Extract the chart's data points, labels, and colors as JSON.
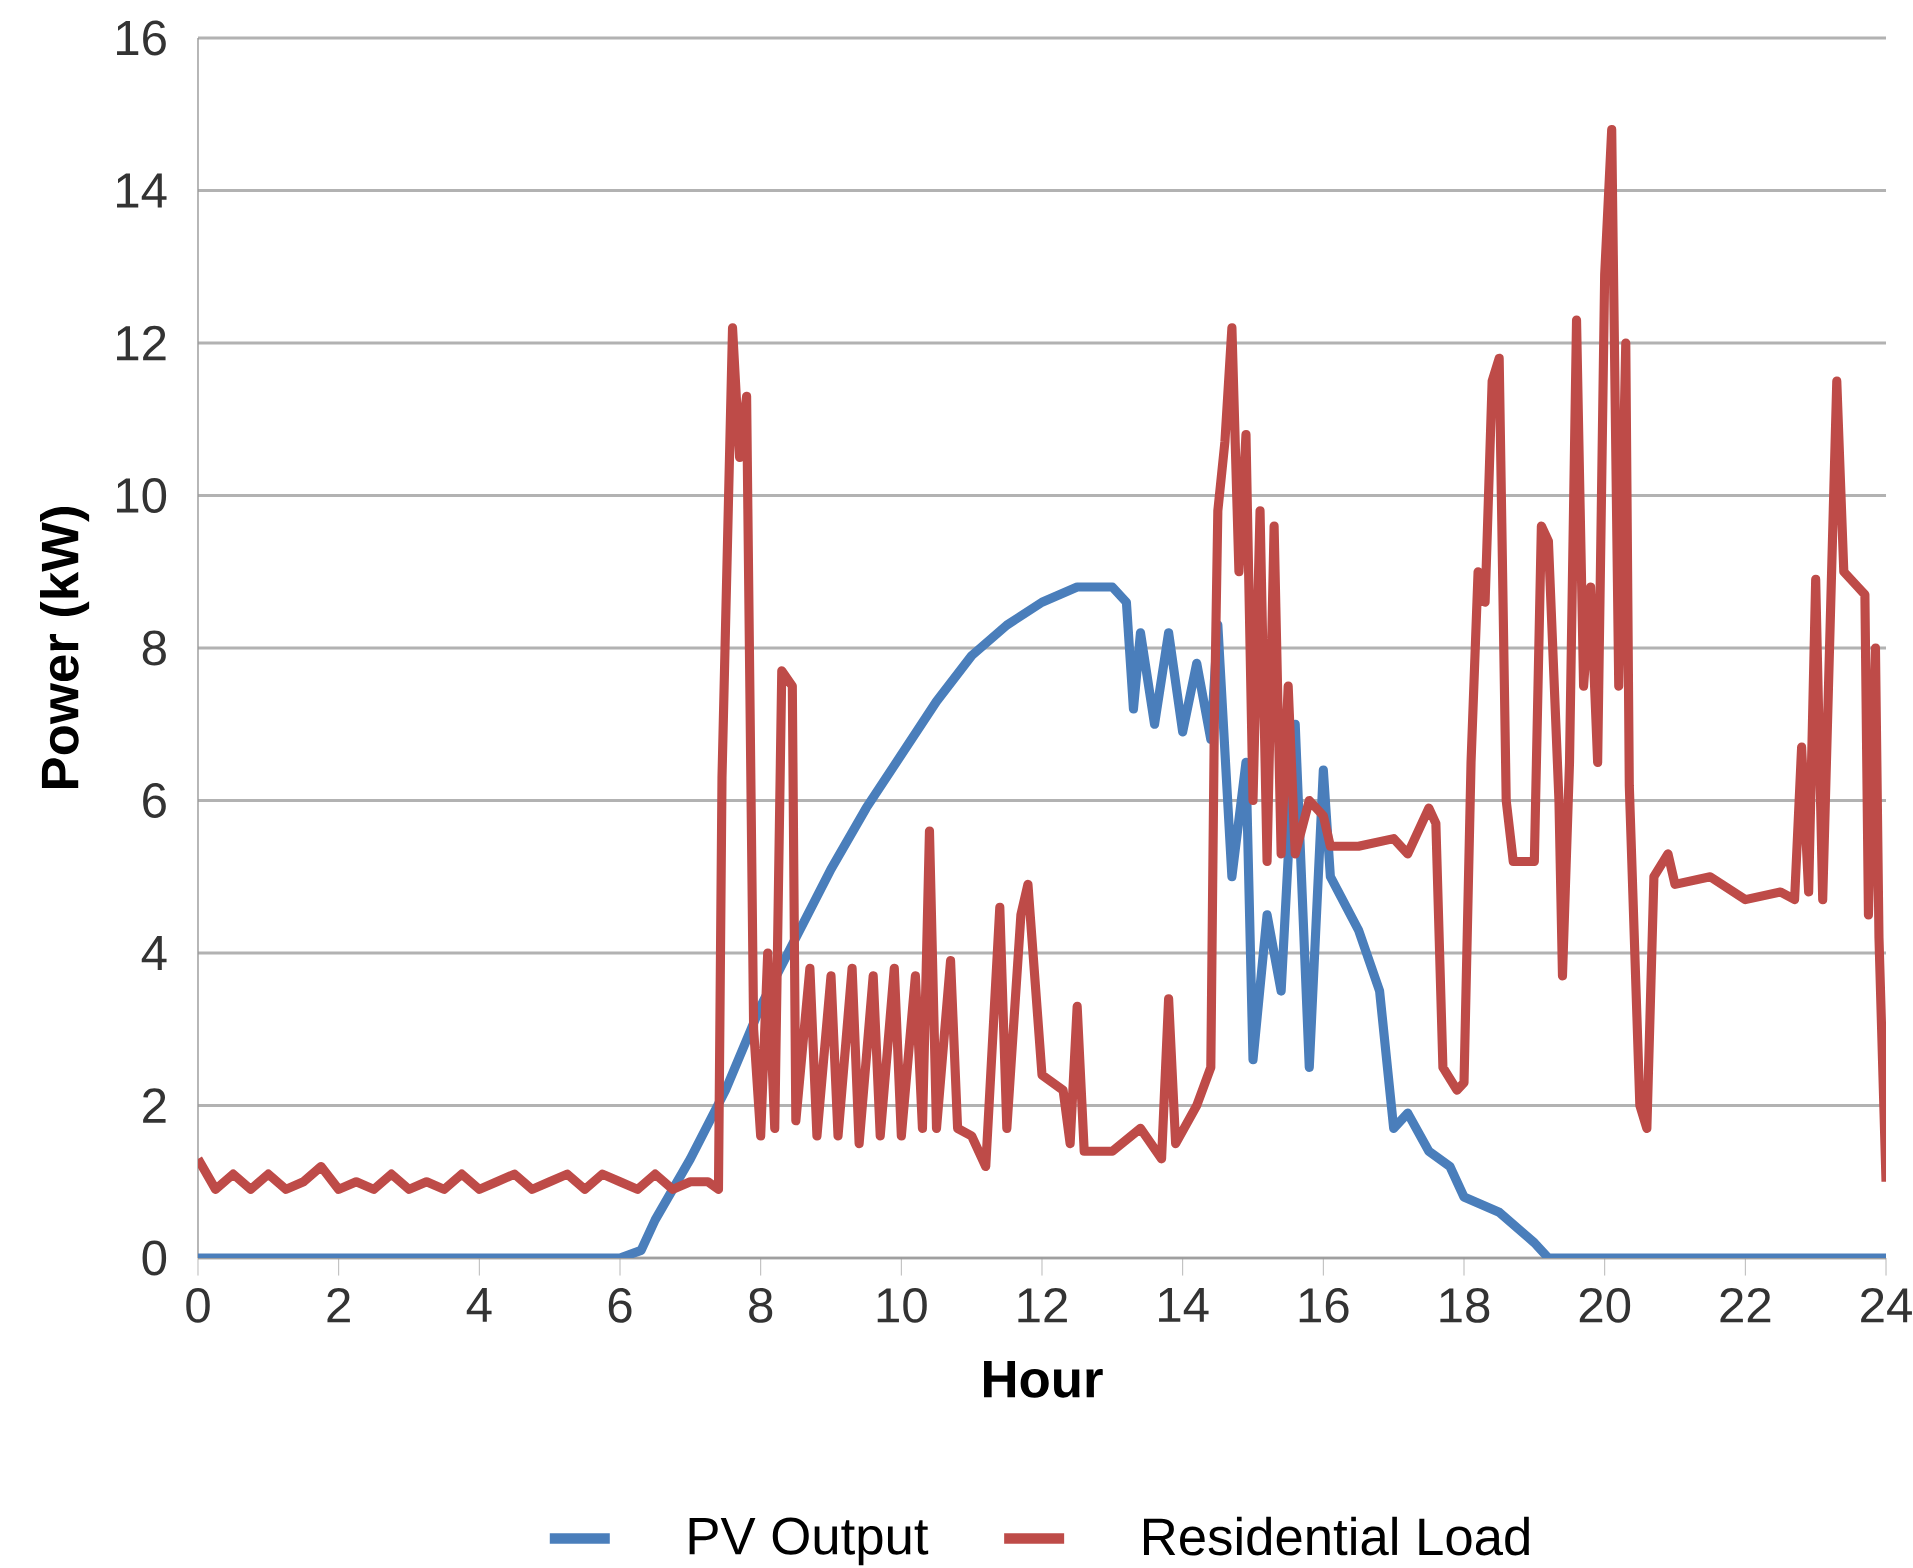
{
  "chart_data": {
    "type": "line",
    "xlabel": "Hour",
    "ylabel": "Power (kW)",
    "xlim": [
      0,
      24
    ],
    "xticks": [
      0,
      2,
      4,
      6,
      8,
      10,
      12,
      14,
      16,
      18,
      20,
      22,
      24
    ],
    "ylim": [
      0,
      16
    ],
    "yticks": [
      0,
      2,
      4,
      6,
      8,
      10,
      12,
      14,
      16
    ],
    "grid": "y",
    "legend": "bottom",
    "series": [
      {
        "name": "PV Output",
        "color": "#4a7ebb",
        "x": [
          0,
          6,
          6.3,
          6.5,
          7,
          7.5,
          8,
          8.5,
          9,
          9.5,
          10,
          10.5,
          11,
          11.5,
          12,
          12.5,
          13,
          13.2,
          13.3,
          13.4,
          13.6,
          13.8,
          14,
          14.2,
          14.4,
          14.5,
          14.7,
          14.9,
          15.0,
          15.2,
          15.4,
          15.6,
          15.8,
          16.0,
          16.1,
          16.5,
          16.8,
          17,
          17.2,
          17.5,
          17.8,
          18,
          18.5,
          19,
          19.2,
          24
        ],
        "values": [
          0,
          0,
          0.1,
          0.5,
          1.3,
          2.2,
          3.3,
          4.2,
          5.1,
          5.9,
          6.6,
          7.3,
          7.9,
          8.3,
          8.6,
          8.8,
          8.8,
          8.6,
          7.2,
          8.2,
          7.0,
          8.2,
          6.9,
          7.8,
          6.8,
          8.3,
          5.0,
          6.5,
          2.6,
          4.5,
          3.5,
          7.0,
          2.5,
          6.4,
          5.0,
          4.3,
          3.5,
          1.7,
          1.9,
          1.4,
          1.2,
          0.8,
          0.6,
          0.2,
          0,
          0
        ]
      },
      {
        "name": "Residential Load",
        "color": "#be4b48",
        "x": [
          0,
          0.25,
          0.5,
          0.75,
          1,
          1.25,
          1.5,
          1.75,
          2,
          2.25,
          2.5,
          2.75,
          3,
          3.25,
          3.5,
          3.75,
          4,
          4.25,
          4.5,
          4.75,
          5,
          5.25,
          5.5,
          5.75,
          6,
          6.25,
          6.5,
          6.75,
          7,
          7.25,
          7.4,
          7.45,
          7.6,
          7.7,
          7.8,
          7.9,
          8.0,
          8.1,
          8.2,
          8.3,
          8.45,
          8.5,
          8.7,
          8.8,
          9.0,
          9.1,
          9.3,
          9.4,
          9.6,
          9.7,
          9.9,
          10.0,
          10.2,
          10.3,
          10.4,
          10.5,
          10.7,
          10.8,
          11.0,
          11.2,
          11.4,
          11.5,
          11.7,
          11.8,
          12.0,
          12.3,
          12.4,
          12.5,
          12.6,
          13.0,
          13.4,
          13.7,
          13.8,
          13.9,
          14.2,
          14.4,
          14.45,
          14.5,
          14.6,
          14.7,
          14.8,
          14.9,
          15.0,
          15.1,
          15.2,
          15.3,
          15.4,
          15.5,
          15.6,
          15.8,
          16.0,
          16.1,
          16.5,
          17,
          17.2,
          17.5,
          17.6,
          17.7,
          17.9,
          18.0,
          18.1,
          18.2,
          18.3,
          18.4,
          18.5,
          18.6,
          18.7,
          19.0,
          19.1,
          19.2,
          19.35,
          19.4,
          19.5,
          19.6,
          19.7,
          19.8,
          19.9,
          20.0,
          20.1,
          20.2,
          20.3,
          20.35,
          20.5,
          20.6,
          20.7,
          20.9,
          21,
          21.5,
          22,
          22.5,
          22.7,
          22.8,
          22.9,
          23,
          23.1,
          23.3,
          23.4,
          23.6,
          23.7,
          23.75,
          23.85,
          23.9,
          24.0
        ],
        "values": [
          1.3,
          0.9,
          1.1,
          0.9,
          1.1,
          0.9,
          1.0,
          1.2,
          0.9,
          1.0,
          0.9,
          1.1,
          0.9,
          1.0,
          0.9,
          1.1,
          0.9,
          1.0,
          1.1,
          0.9,
          1.0,
          1.1,
          0.9,
          1.1,
          1.0,
          0.9,
          1.1,
          0.9,
          1.0,
          1.0,
          0.9,
          6.3,
          12.2,
          10.5,
          11.3,
          3.0,
          1.6,
          4.0,
          1.7,
          7.7,
          7.5,
          1.8,
          3.8,
          1.6,
          3.7,
          1.6,
          3.8,
          1.5,
          3.7,
          1.6,
          3.8,
          1.6,
          3.7,
          1.7,
          5.6,
          1.7,
          3.9,
          1.7,
          1.6,
          1.2,
          4.6,
          1.7,
          4.5,
          4.9,
          2.4,
          2.2,
          1.5,
          3.3,
          1.4,
          1.4,
          1.7,
          1.3,
          3.4,
          1.5,
          2.0,
          2.5,
          7.0,
          9.8,
          10.7,
          12.2,
          9.0,
          10.8,
          6.0,
          9.8,
          5.2,
          9.6,
          5.3,
          7.5,
          5.3,
          6.0,
          5.8,
          5.4,
          5.4,
          5.5,
          5.3,
          5.9,
          5.7,
          2.5,
          2.2,
          2.3,
          6.5,
          9.0,
          8.6,
          11.5,
          11.8,
          6.0,
          5.2,
          5.2,
          9.6,
          9.4,
          6.0,
          3.7,
          6.5,
          12.3,
          7.5,
          8.8,
          6.5,
          12.9,
          14.8,
          7.5,
          12.0,
          6.2,
          2.0,
          1.7,
          5.0,
          5.3,
          4.9,
          5.0,
          4.7,
          4.8,
          4.7,
          6.7,
          4.8,
          8.9,
          4.7,
          11.5,
          9.0,
          8.8,
          8.7,
          4.5,
          8.0,
          4.2,
          1.0
        ]
      }
    ]
  }
}
